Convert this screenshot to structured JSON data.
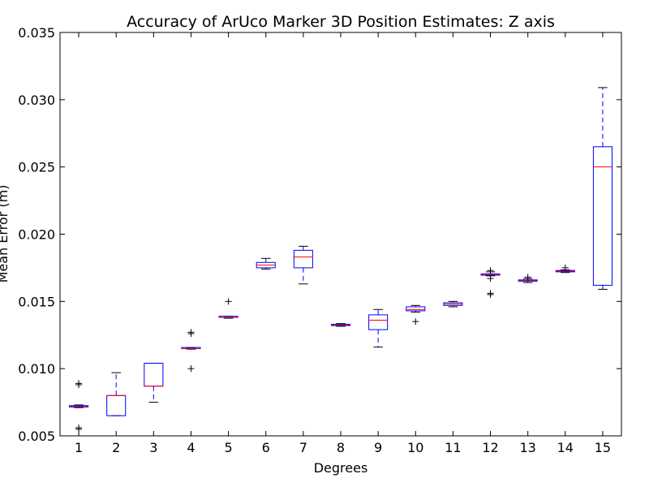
{
  "chart_data": {
    "type": "box",
    "title": "Accuracy of ArUco Marker 3D Position Estimates: Z axis",
    "xlabel": "Degrees",
    "ylabel": "Mean Error (m)",
    "ylim": [
      0.005,
      0.035
    ],
    "yticks": [
      "0.005",
      "0.010",
      "0.015",
      "0.020",
      "0.025",
      "0.030",
      "0.035"
    ],
    "ytick_values": [
      0.005,
      0.01,
      0.015,
      0.02,
      0.025,
      0.03,
      0.035
    ],
    "categories": [
      "1",
      "2",
      "3",
      "4",
      "5",
      "6",
      "7",
      "8",
      "9",
      "10",
      "11",
      "12",
      "13",
      "14",
      "15"
    ],
    "grid": false,
    "colors": {
      "box": "#0000ff",
      "median": "#ff0000",
      "whisker": "#0000ff",
      "cap": "#000000",
      "flier": "#000000"
    },
    "boxes": [
      {
        "category": "1",
        "whislo": 0.0071,
        "q1": 0.00715,
        "med": 0.0072,
        "q3": 0.00725,
        "whishi": 0.0073,
        "fliers": [
          0.0055,
          0.0056,
          0.0088,
          0.0089
        ]
      },
      {
        "category": "2",
        "whislo": 0.0065,
        "q1": 0.0065,
        "med": 0.008,
        "q3": 0.008,
        "whishi": 0.0097,
        "fliers": []
      },
      {
        "category": "3",
        "whislo": 0.0075,
        "q1": 0.0087,
        "med": 0.0087,
        "q3": 0.0104,
        "whishi": 0.0104,
        "fliers": []
      },
      {
        "category": "4",
        "whislo": 0.01145,
        "q1": 0.01147,
        "med": 0.0115,
        "q3": 0.01153,
        "whishi": 0.01155,
        "fliers": [
          0.01,
          0.0126,
          0.0127
        ]
      },
      {
        "category": "5",
        "whislo": 0.01375,
        "q1": 0.0138,
        "med": 0.01382,
        "q3": 0.01385,
        "whishi": 0.0139,
        "fliers": [
          0.015
        ]
      },
      {
        "category": "6",
        "whislo": 0.0174,
        "q1": 0.0175,
        "med": 0.0177,
        "q3": 0.0179,
        "whishi": 0.0182,
        "fliers": []
      },
      {
        "category": "7",
        "whislo": 0.0163,
        "q1": 0.0175,
        "med": 0.0183,
        "q3": 0.0188,
        "whishi": 0.0191,
        "fliers": []
      },
      {
        "category": "8",
        "whislo": 0.01315,
        "q1": 0.0132,
        "med": 0.01325,
        "q3": 0.0133,
        "whishi": 0.01335,
        "fliers": []
      },
      {
        "category": "9",
        "whislo": 0.0116,
        "q1": 0.0129,
        "med": 0.0136,
        "q3": 0.014,
        "whishi": 0.0144,
        "fliers": []
      },
      {
        "category": "10",
        "whislo": 0.0142,
        "q1": 0.0143,
        "med": 0.0144,
        "q3": 0.0146,
        "whishi": 0.0147,
        "fliers": [
          0.0135
        ]
      },
      {
        "category": "11",
        "whislo": 0.0146,
        "q1": 0.0147,
        "med": 0.0148,
        "q3": 0.0149,
        "whishi": 0.015,
        "fliers": []
      },
      {
        "category": "12",
        "whislo": 0.0169,
        "q1": 0.01695,
        "med": 0.017,
        "q3": 0.01705,
        "whishi": 0.0172,
        "fliers": [
          0.0155,
          0.0156,
          0.0167,
          0.0173
        ]
      },
      {
        "category": "13",
        "whislo": 0.0164,
        "q1": 0.0165,
        "med": 0.01655,
        "q3": 0.0166,
        "whishi": 0.0167,
        "fliers": [
          0.0168
        ]
      },
      {
        "category": "14",
        "whislo": 0.01715,
        "q1": 0.0172,
        "med": 0.01725,
        "q3": 0.0173,
        "whishi": 0.01735,
        "fliers": [
          0.0175
        ]
      },
      {
        "category": "15",
        "whislo": 0.0159,
        "q1": 0.0162,
        "med": 0.025,
        "q3": 0.0265,
        "whishi": 0.0309,
        "fliers": []
      }
    ]
  }
}
